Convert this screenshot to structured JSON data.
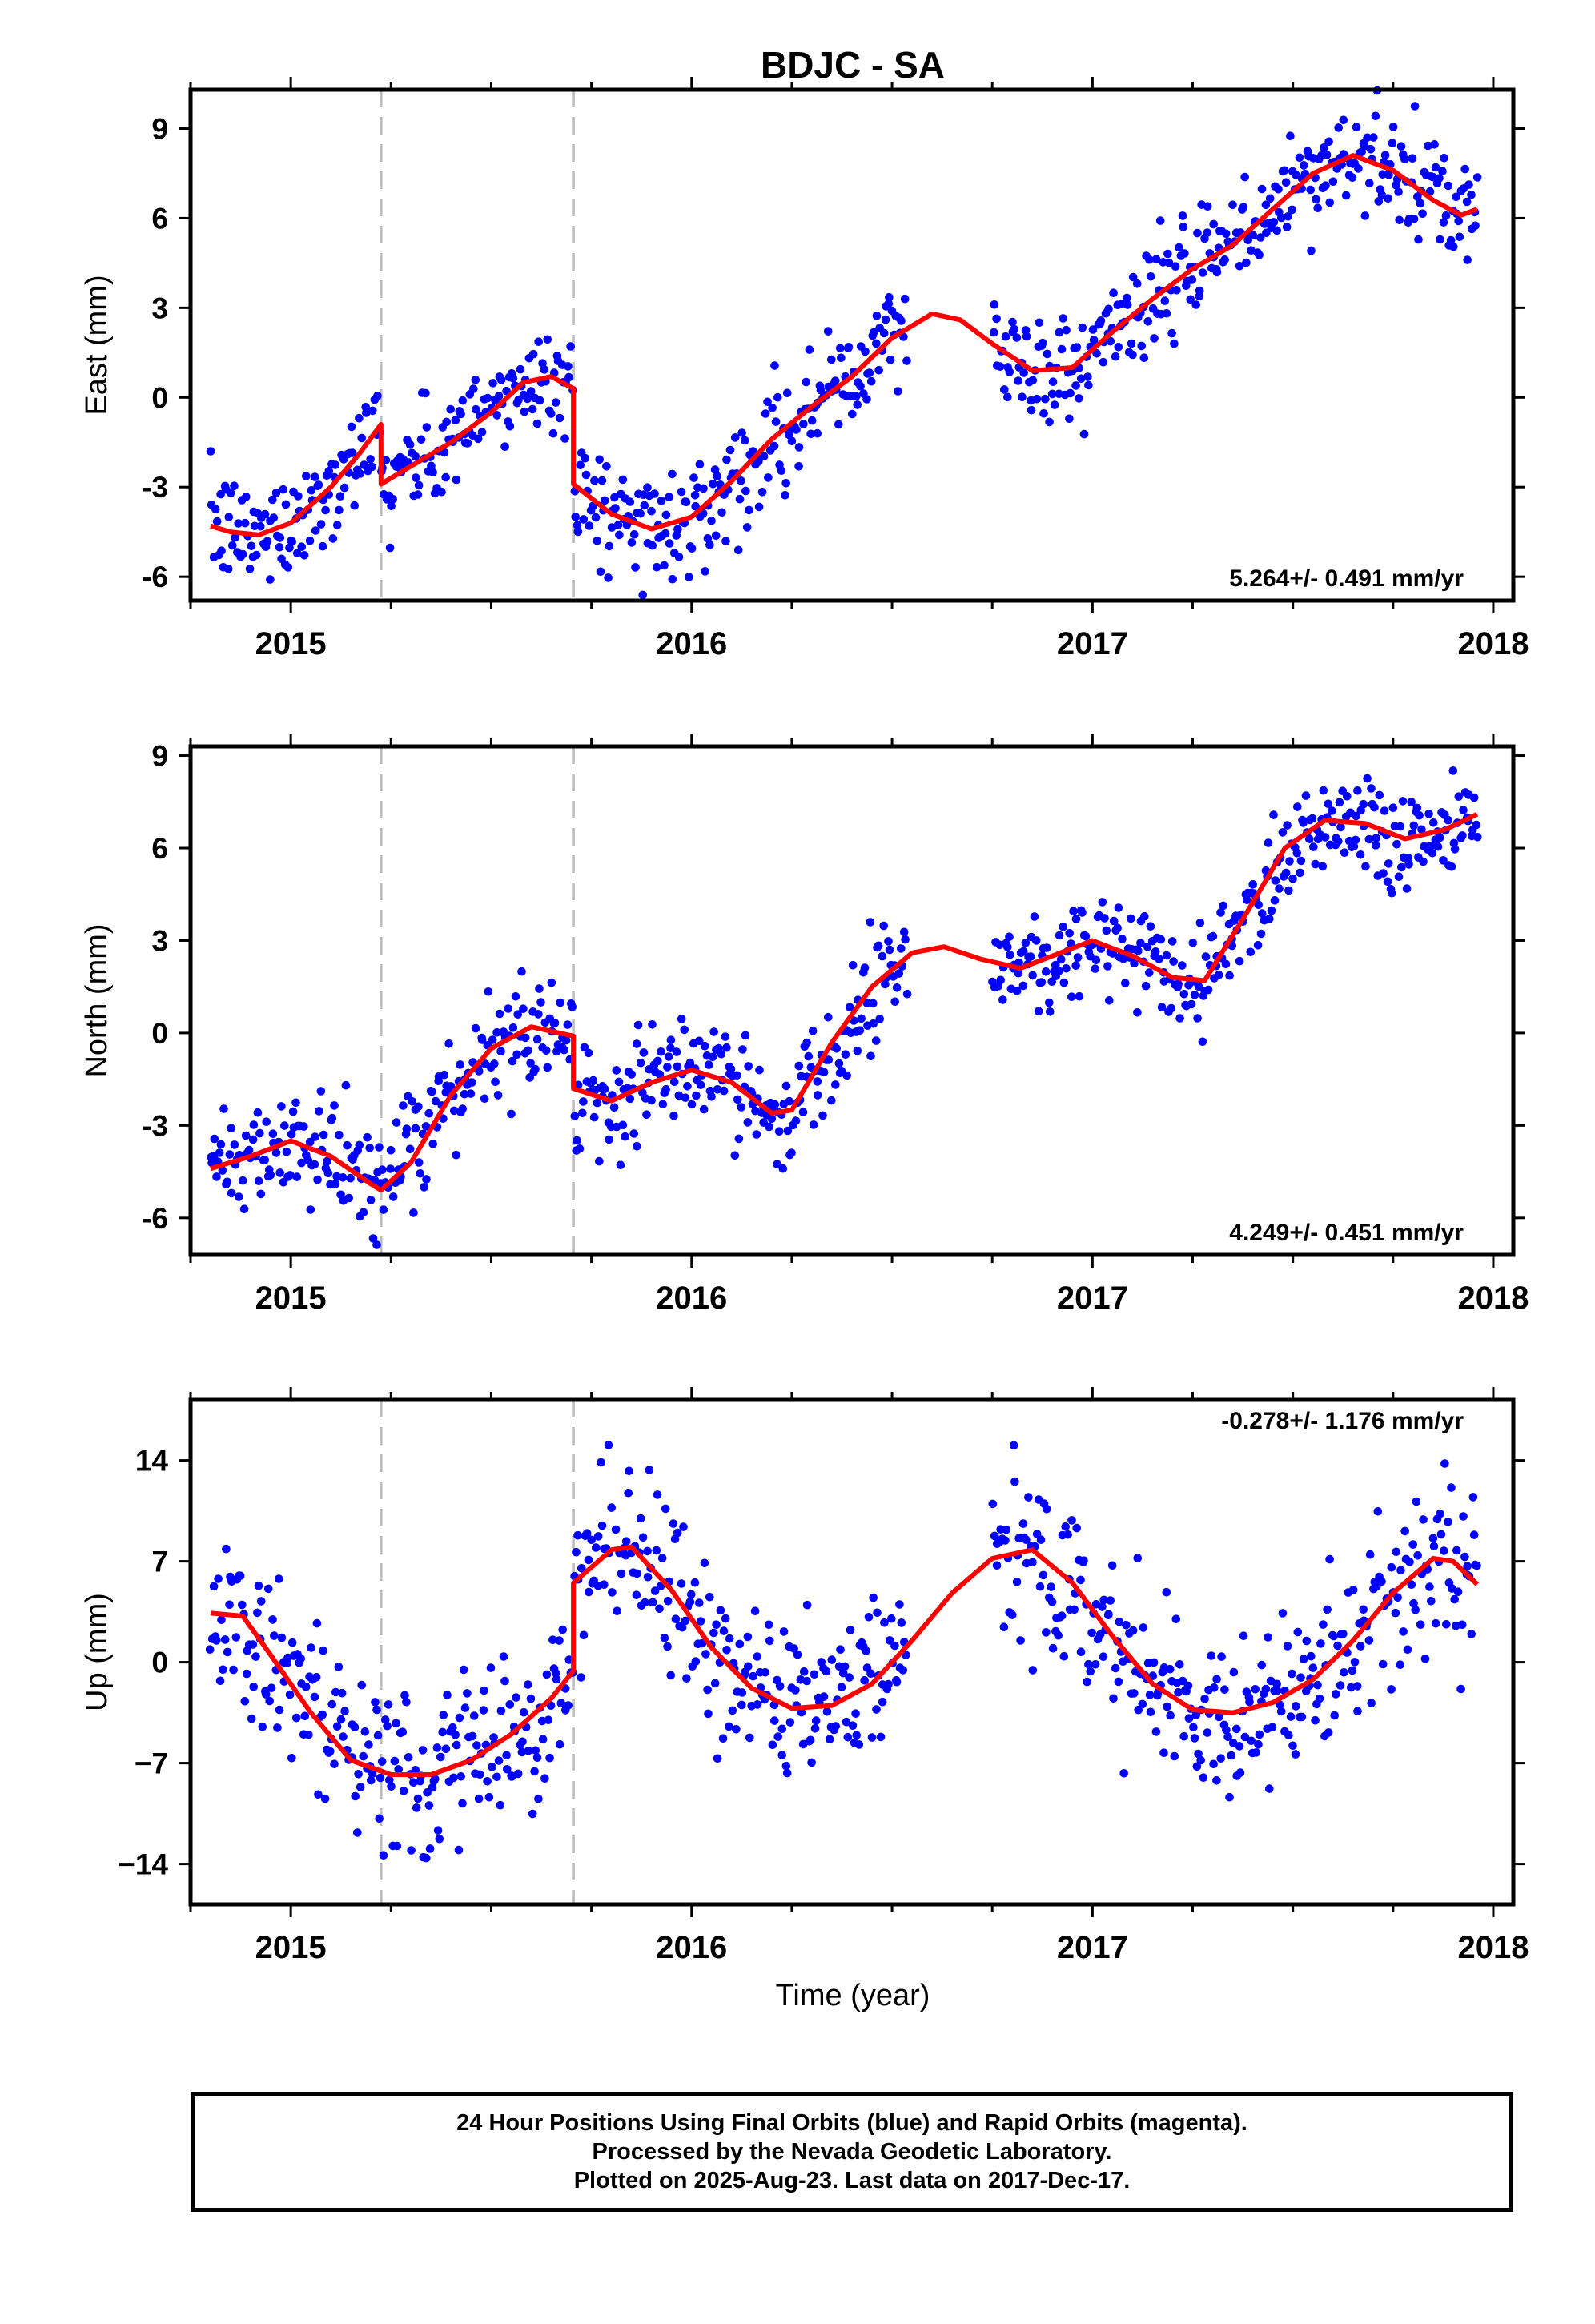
{
  "title": "BDJC - SA",
  "x_axis_label": "Time (year)",
  "caption": [
    "24 Hour Positions Using Final Orbits (blue) and Rapid Orbits (magenta).",
    "Processed by the Nevada Geodetic Laboratory.",
    "Plotted on 2025-Aug-23. Last data on 2017-Dec-17."
  ],
  "colors": {
    "data": "#0000ff",
    "model": "#ff0000",
    "offset_line": "#bbbbbb",
    "axis": "#000000"
  },
  "chart_data": [
    {
      "type": "scatter",
      "component": "East",
      "ylabel": "East (mm)",
      "xlim": [
        2014.75,
        2018.05
      ],
      "ylim": [
        -6.8,
        10.3
      ],
      "yticks": [
        -6,
        -3,
        0,
        3,
        6,
        9
      ],
      "xticks": [
        2015,
        2016,
        2017,
        2018
      ],
      "rate_label": "5.264+/- 0.491 mm/yr",
      "rate_position": "bottom-right",
      "offset_epochs": [
        2015.225,
        2015.705
      ],
      "data_gap": [
        2016.54,
        2016.75
      ],
      "data_range": [
        2014.8,
        2017.96
      ],
      "model": {
        "segments": [
          [
            2014.8,
            2015.225
          ],
          [
            2015.225,
            2015.705
          ],
          [
            2015.705,
            2017.96
          ]
        ],
        "points": [
          [
            2014.8,
            -4.3
          ],
          [
            2014.85,
            -4.5
          ],
          [
            2014.92,
            -4.6
          ],
          [
            2015.0,
            -4.2
          ],
          [
            2015.1,
            -3.0
          ],
          [
            2015.17,
            -1.9
          ],
          [
            2015.225,
            -0.9
          ],
          [
            2015.225,
            -2.9
          ],
          [
            2015.3,
            -2.3
          ],
          [
            2015.4,
            -1.5
          ],
          [
            2015.5,
            -0.5
          ],
          [
            2015.58,
            0.5
          ],
          [
            2015.65,
            0.7
          ],
          [
            2015.705,
            0.3
          ],
          [
            2015.705,
            -2.9
          ],
          [
            2015.8,
            -3.9
          ],
          [
            2015.9,
            -4.4
          ],
          [
            2016.0,
            -4.0
          ],
          [
            2016.1,
            -2.8
          ],
          [
            2016.2,
            -1.4
          ],
          [
            2016.3,
            -0.3
          ],
          [
            2016.4,
            0.7
          ],
          [
            2016.5,
            2.0
          ],
          [
            2016.6,
            2.8
          ],
          [
            2016.67,
            2.6
          ],
          [
            2016.75,
            1.8
          ],
          [
            2016.85,
            0.9
          ],
          [
            2016.95,
            1.0
          ],
          [
            2017.05,
            2.2
          ],
          [
            2017.15,
            3.3
          ],
          [
            2017.25,
            4.3
          ],
          [
            2017.35,
            5.1
          ],
          [
            2017.45,
            6.3
          ],
          [
            2017.55,
            7.5
          ],
          [
            2017.65,
            8.1
          ],
          [
            2017.75,
            7.6
          ],
          [
            2017.85,
            6.6
          ],
          [
            2017.92,
            6.1
          ],
          [
            2017.96,
            6.3
          ]
        ]
      },
      "scatter_sd": 0.9
    },
    {
      "type": "scatter",
      "component": "North",
      "ylabel": "North (mm)",
      "xlim": [
        2014.75,
        2018.05
      ],
      "ylim": [
        -7.2,
        9.3
      ],
      "yticks": [
        -6,
        -3,
        0,
        3,
        6,
        9
      ],
      "xticks": [
        2015,
        2016,
        2017,
        2018
      ],
      "rate_label": "4.249+/- 0.451 mm/yr",
      "rate_position": "bottom-right",
      "offset_epochs": [
        2015.225,
        2015.705
      ],
      "data_gap": [
        2016.54,
        2016.75
      ],
      "data_range": [
        2014.8,
        2017.96
      ],
      "model": {
        "segments": [
          [
            2014.8,
            2015.225
          ],
          [
            2015.225,
            2015.705
          ],
          [
            2015.705,
            2017.96
          ]
        ],
        "points": [
          [
            2014.8,
            -4.4
          ],
          [
            2014.9,
            -4.0
          ],
          [
            2015.0,
            -3.5
          ],
          [
            2015.1,
            -4.0
          ],
          [
            2015.2,
            -4.9
          ],
          [
            2015.225,
            -5.1
          ],
          [
            2015.225,
            -5.1
          ],
          [
            2015.3,
            -4.2
          ],
          [
            2015.4,
            -2.0
          ],
          [
            2015.5,
            -0.5
          ],
          [
            2015.6,
            0.2
          ],
          [
            2015.705,
            -0.1
          ],
          [
            2015.705,
            -1.8
          ],
          [
            2015.8,
            -2.2
          ],
          [
            2015.9,
            -1.6
          ],
          [
            2016.0,
            -1.2
          ],
          [
            2016.1,
            -1.6
          ],
          [
            2016.2,
            -2.6
          ],
          [
            2016.25,
            -2.5
          ],
          [
            2016.35,
            -0.3
          ],
          [
            2016.45,
            1.5
          ],
          [
            2016.55,
            2.6
          ],
          [
            2016.63,
            2.8
          ],
          [
            2016.72,
            2.4
          ],
          [
            2016.82,
            2.1
          ],
          [
            2016.92,
            2.6
          ],
          [
            2017.0,
            3.0
          ],
          [
            2017.1,
            2.5
          ],
          [
            2017.2,
            1.8
          ],
          [
            2017.28,
            1.7
          ],
          [
            2017.38,
            3.8
          ],
          [
            2017.48,
            6.0
          ],
          [
            2017.58,
            6.9
          ],
          [
            2017.68,
            6.8
          ],
          [
            2017.78,
            6.3
          ],
          [
            2017.88,
            6.6
          ],
          [
            2017.96,
            7.1
          ]
        ]
      },
      "scatter_sd": 0.9
    },
    {
      "type": "scatter",
      "component": "Up",
      "ylabel": "Up (mm)",
      "xlim": [
        2014.75,
        2018.05
      ],
      "ylim": [
        -16.8,
        18.2
      ],
      "yticks": [
        -14,
        -7,
        0,
        7,
        14
      ],
      "ytick_labels": [
        "−14",
        "−7",
        "0",
        "7",
        "14"
      ],
      "xticks": [
        2015,
        2016,
        2017,
        2018
      ],
      "rate_label": "-0.278+/- 1.176 mm/yr",
      "rate_position": "top-right",
      "offset_epochs": [
        2015.225,
        2015.705
      ],
      "data_gap": [
        2016.54,
        2016.75
      ],
      "data_range": [
        2014.8,
        2017.96
      ],
      "model": {
        "segments": [
          [
            2014.8,
            2015.705
          ],
          [
            2015.705,
            2017.96
          ]
        ],
        "points": [
          [
            2014.8,
            3.4
          ],
          [
            2014.88,
            3.2
          ],
          [
            2014.95,
            0.5
          ],
          [
            2015.05,
            -3.5
          ],
          [
            2015.15,
            -6.8
          ],
          [
            2015.25,
            -7.8
          ],
          [
            2015.35,
            -7.8
          ],
          [
            2015.45,
            -6.8
          ],
          [
            2015.55,
            -5.0
          ],
          [
            2015.65,
            -2.5
          ],
          [
            2015.705,
            -0.6
          ],
          [
            2015.705,
            5.5
          ],
          [
            2015.8,
            7.8
          ],
          [
            2015.85,
            8.0
          ],
          [
            2015.95,
            5.0
          ],
          [
            2016.05,
            1.0
          ],
          [
            2016.15,
            -1.8
          ],
          [
            2016.25,
            -3.2
          ],
          [
            2016.35,
            -3.0
          ],
          [
            2016.45,
            -1.5
          ],
          [
            2016.55,
            1.5
          ],
          [
            2016.65,
            4.8
          ],
          [
            2016.75,
            7.2
          ],
          [
            2016.85,
            7.8
          ],
          [
            2016.95,
            5.5
          ],
          [
            2017.05,
            1.8
          ],
          [
            2017.15,
            -1.5
          ],
          [
            2017.25,
            -3.3
          ],
          [
            2017.35,
            -3.5
          ],
          [
            2017.45,
            -2.8
          ],
          [
            2017.55,
            -1.2
          ],
          [
            2017.65,
            1.5
          ],
          [
            2017.75,
            4.8
          ],
          [
            2017.85,
            7.2
          ],
          [
            2017.9,
            7.0
          ],
          [
            2017.96,
            5.4
          ]
        ]
      },
      "scatter_sd": 2.8
    }
  ]
}
